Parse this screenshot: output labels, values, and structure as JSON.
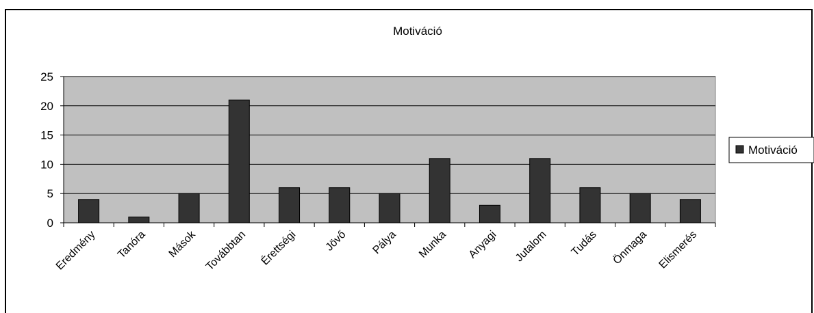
{
  "chart_data": {
    "type": "bar",
    "title": "Motiváció",
    "categories": [
      "Eredmény",
      "Tanóra",
      "Mások",
      "Továbbtan",
      "Érettségi",
      "Jövő",
      "Pálya",
      "Munka",
      "Anyagi",
      "Jutalom",
      "Tudás",
      "Önmaga",
      "Elismerés"
    ],
    "series": [
      {
        "name": "Motiváció",
        "values": [
          4,
          1,
          5,
          21,
          6,
          6,
          5,
          11,
          3,
          11,
          6,
          5,
          4
        ]
      }
    ],
    "ylim": [
      0,
      25
    ],
    "yticks": [
      "0",
      "5",
      "10",
      "15",
      "20",
      "25"
    ],
    "grid": true,
    "legend_position": "right",
    "colors": {
      "bar": "#333333",
      "plot_background": "#c0c0c0",
      "gridline": "#000000"
    }
  }
}
